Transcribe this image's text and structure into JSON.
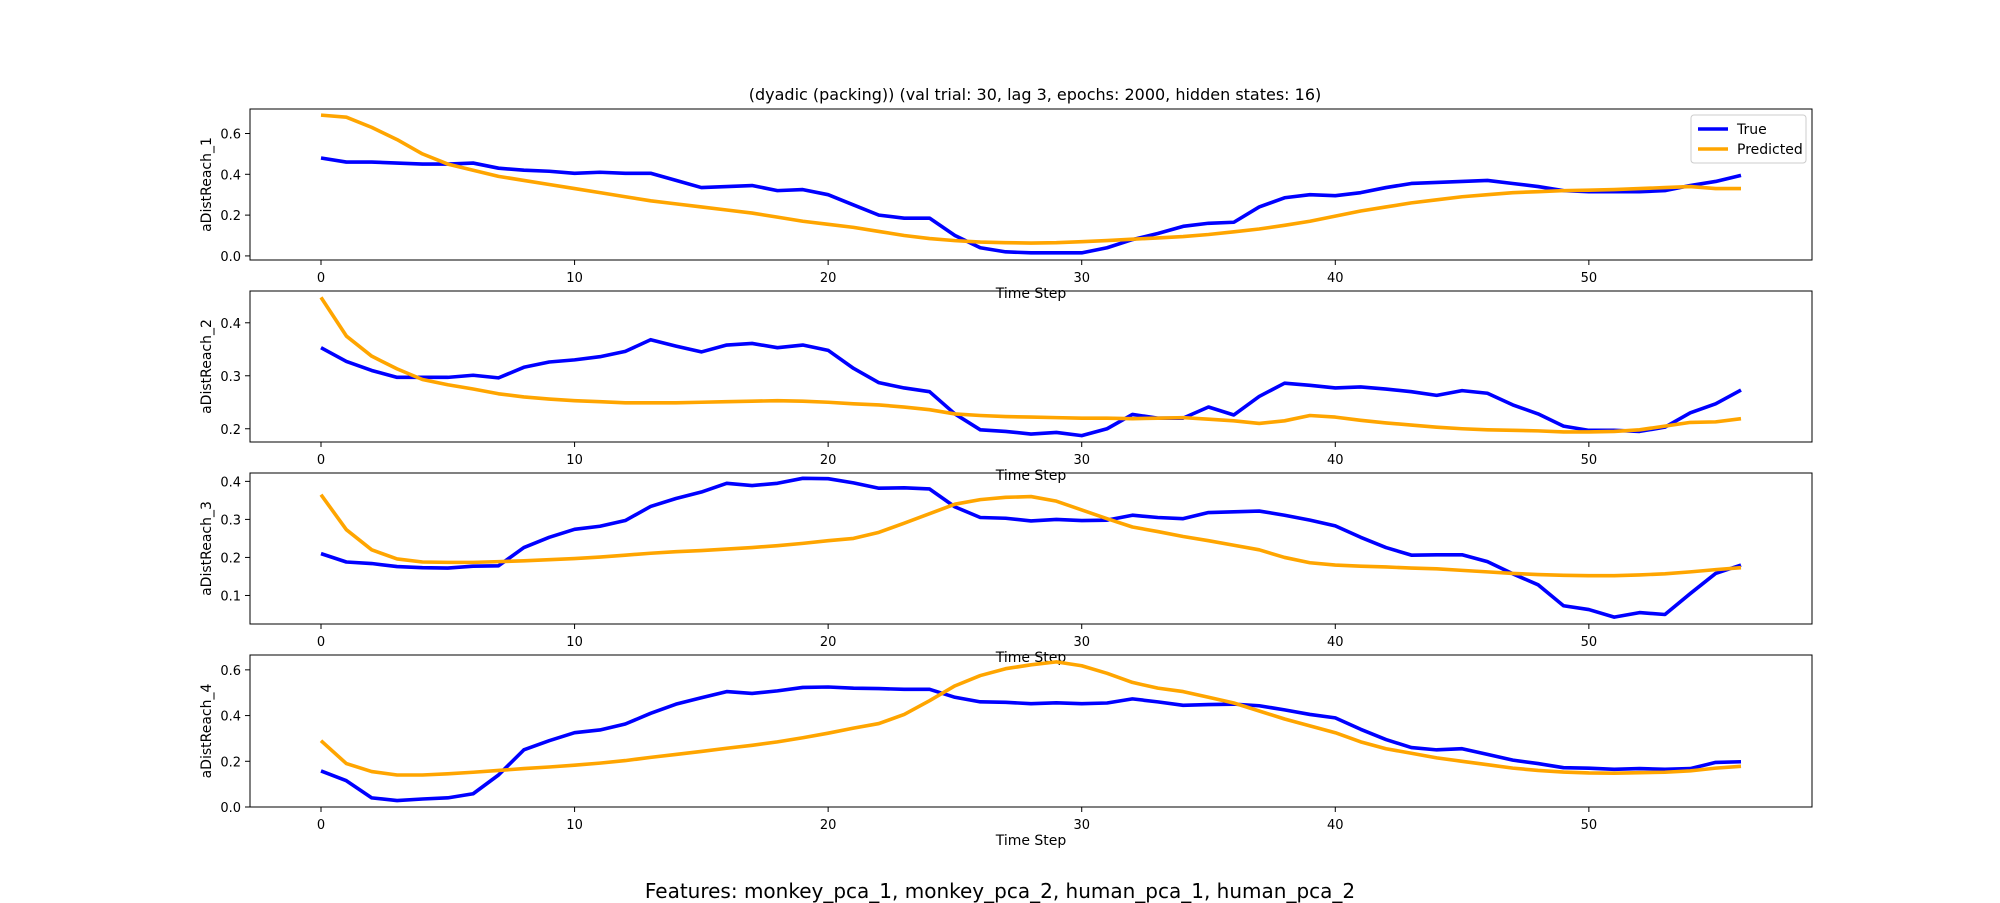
{
  "figure_title": "(dyadic (packing)) (val trial: 30, lag 3, epochs: 2000, hidden states: 16)",
  "caption": "Features: monkey_pca_1, monkey_pca_2, human_pca_1, human_pca_2",
  "colors": {
    "true": "#0000ff",
    "predicted": "#ffa500"
  },
  "chart_data": [
    {
      "type": "line",
      "xlabel": "Time Step",
      "ylabel": "aDistReach_1",
      "xlim": [
        -2.8,
        58.8
      ],
      "ylim": [
        -0.02,
        0.72
      ],
      "xticks": [
        0,
        10,
        20,
        30,
        40,
        50
      ],
      "yticks": [
        0.0,
        0.2,
        0.4,
        0.6
      ],
      "ytick_labels": [
        "0.0",
        "0.2",
        "0.4",
        "0.6"
      ],
      "grid": false,
      "legend": "top-right",
      "series": [
        {
          "name": "True",
          "color": "#0000ff",
          "values": [
            0.48,
            0.46,
            0.46,
            0.455,
            0.45,
            0.45,
            0.455,
            0.43,
            0.42,
            0.415,
            0.405,
            0.41,
            0.405,
            0.405,
            0.37,
            0.335,
            0.34,
            0.345,
            0.32,
            0.325,
            0.3,
            0.25,
            0.2,
            0.185,
            0.185,
            0.1,
            0.04,
            0.02,
            0.015,
            0.015,
            0.015,
            0.04,
            0.08,
            0.11,
            0.145,
            0.16,
            0.165,
            0.24,
            0.285,
            0.3,
            0.295,
            0.31,
            0.335,
            0.355,
            0.36,
            0.365,
            0.37,
            0.355,
            0.34,
            0.32,
            0.315,
            0.315,
            0.315,
            0.32,
            0.345,
            0.365,
            0.395
          ]
        },
        {
          "name": "Predicted",
          "color": "#ffa500",
          "values": [
            0.69,
            0.68,
            0.63,
            0.57,
            0.5,
            0.45,
            0.42,
            0.39,
            0.37,
            0.35,
            0.33,
            0.31,
            0.29,
            0.27,
            0.255,
            0.24,
            0.225,
            0.21,
            0.19,
            0.17,
            0.155,
            0.14,
            0.12,
            0.1,
            0.085,
            0.075,
            0.068,
            0.065,
            0.063,
            0.065,
            0.07,
            0.075,
            0.082,
            0.088,
            0.095,
            0.105,
            0.118,
            0.132,
            0.15,
            0.17,
            0.195,
            0.22,
            0.24,
            0.26,
            0.275,
            0.29,
            0.3,
            0.31,
            0.315,
            0.32,
            0.322,
            0.325,
            0.33,
            0.335,
            0.34,
            0.33,
            0.33
          ]
        }
      ]
    },
    {
      "type": "line",
      "xlabel": "Time Step",
      "ylabel": "aDistReach_2",
      "xlim": [
        -2.8,
        58.8
      ],
      "ylim": [
        0.175,
        0.46
      ],
      "xticks": [
        0,
        10,
        20,
        30,
        40,
        50
      ],
      "yticks": [
        0.2,
        0.3,
        0.4
      ],
      "ytick_labels": [
        "0.2",
        "0.3",
        "0.4"
      ],
      "grid": false,
      "series": [
        {
          "name": "True",
          "color": "#0000ff",
          "values": [
            0.353,
            0.327,
            0.31,
            0.297,
            0.297,
            0.297,
            0.301,
            0.296,
            0.316,
            0.326,
            0.33,
            0.336,
            0.346,
            0.368,
            0.356,
            0.345,
            0.358,
            0.361,
            0.353,
            0.358,
            0.348,
            0.314,
            0.287,
            0.277,
            0.27,
            0.228,
            0.198,
            0.195,
            0.19,
            0.193,
            0.187,
            0.2,
            0.227,
            0.22,
            0.22,
            0.241,
            0.226,
            0.261,
            0.286,
            0.282,
            0.277,
            0.279,
            0.275,
            0.27,
            0.263,
            0.272,
            0.267,
            0.245,
            0.228,
            0.205,
            0.197,
            0.197,
            0.195,
            0.203,
            0.23,
            0.247,
            0.273
          ]
        },
        {
          "name": "Predicted",
          "color": "#ffa500",
          "values": [
            0.448,
            0.375,
            0.337,
            0.313,
            0.293,
            0.283,
            0.275,
            0.266,
            0.26,
            0.256,
            0.253,
            0.251,
            0.249,
            0.249,
            0.249,
            0.25,
            0.251,
            0.252,
            0.253,
            0.252,
            0.25,
            0.247,
            0.245,
            0.241,
            0.236,
            0.228,
            0.225,
            0.223,
            0.222,
            0.221,
            0.22,
            0.22,
            0.219,
            0.22,
            0.221,
            0.218,
            0.215,
            0.21,
            0.215,
            0.225,
            0.222,
            0.216,
            0.211,
            0.207,
            0.203,
            0.2,
            0.198,
            0.197,
            0.196,
            0.194,
            0.194,
            0.195,
            0.198,
            0.205,
            0.212,
            0.213,
            0.219
          ]
        }
      ]
    },
    {
      "type": "line",
      "xlabel": "Time Step",
      "ylabel": "aDistReach_3",
      "xlim": [
        -2.8,
        58.8
      ],
      "ylim": [
        0.025,
        0.422
      ],
      "xticks": [
        0,
        10,
        20,
        30,
        40,
        50
      ],
      "yticks": [
        0.1,
        0.2,
        0.3,
        0.4
      ],
      "ytick_labels": [
        "0.1",
        "0.2",
        "0.3",
        "0.4"
      ],
      "grid": false,
      "series": [
        {
          "name": "True",
          "color": "#0000ff",
          "values": [
            0.21,
            0.188,
            0.184,
            0.176,
            0.173,
            0.172,
            0.177,
            0.178,
            0.226,
            0.253,
            0.274,
            0.282,
            0.297,
            0.334,
            0.355,
            0.372,
            0.395,
            0.389,
            0.395,
            0.408,
            0.407,
            0.396,
            0.382,
            0.383,
            0.38,
            0.333,
            0.305,
            0.303,
            0.296,
            0.3,
            0.297,
            0.298,
            0.311,
            0.305,
            0.302,
            0.318,
            0.32,
            0.322,
            0.311,
            0.298,
            0.283,
            0.253,
            0.226,
            0.206,
            0.207,
            0.207,
            0.189,
            0.157,
            0.128,
            0.073,
            0.063,
            0.043,
            0.055,
            0.05,
            0.105,
            0.158,
            0.18
          ]
        },
        {
          "name": "Predicted",
          "color": "#ffa500",
          "values": [
            0.365,
            0.273,
            0.22,
            0.196,
            0.188,
            0.187,
            0.187,
            0.189,
            0.191,
            0.194,
            0.197,
            0.201,
            0.206,
            0.211,
            0.215,
            0.218,
            0.222,
            0.226,
            0.231,
            0.237,
            0.244,
            0.25,
            0.266,
            0.29,
            0.315,
            0.34,
            0.352,
            0.358,
            0.36,
            0.348,
            0.325,
            0.302,
            0.28,
            0.268,
            0.255,
            0.244,
            0.232,
            0.22,
            0.2,
            0.186,
            0.18,
            0.177,
            0.175,
            0.172,
            0.17,
            0.166,
            0.162,
            0.158,
            0.155,
            0.153,
            0.152,
            0.152,
            0.154,
            0.157,
            0.162,
            0.168,
            0.173
          ]
        }
      ]
    },
    {
      "type": "line",
      "xlabel": "Time Step",
      "ylabel": "aDistReach_4",
      "xlim": [
        -2.8,
        58.8
      ],
      "ylim": [
        0.0,
        0.665
      ],
      "xticks": [
        0,
        10,
        20,
        30,
        40,
        50
      ],
      "yticks": [
        0.0,
        0.2,
        0.4,
        0.6
      ],
      "ytick_labels": [
        "0.0",
        "0.2",
        "0.4",
        "0.6"
      ],
      "grid": false,
      "series": [
        {
          "name": "True",
          "color": "#0000ff",
          "values": [
            0.158,
            0.115,
            0.04,
            0.028,
            0.035,
            0.04,
            0.058,
            0.14,
            0.25,
            0.29,
            0.325,
            0.337,
            0.363,
            0.41,
            0.45,
            0.478,
            0.505,
            0.497,
            0.508,
            0.523,
            0.525,
            0.52,
            0.518,
            0.515,
            0.515,
            0.48,
            0.46,
            0.458,
            0.452,
            0.456,
            0.452,
            0.455,
            0.473,
            0.46,
            0.445,
            0.448,
            0.45,
            0.443,
            0.425,
            0.405,
            0.39,
            0.34,
            0.295,
            0.26,
            0.25,
            0.255,
            0.23,
            0.205,
            0.19,
            0.172,
            0.17,
            0.165,
            0.168,
            0.165,
            0.168,
            0.195,
            0.198
          ]
        },
        {
          "name": "Predicted",
          "color": "#ffa500",
          "values": [
            0.29,
            0.19,
            0.155,
            0.14,
            0.14,
            0.145,
            0.152,
            0.16,
            0.168,
            0.175,
            0.183,
            0.192,
            0.203,
            0.217,
            0.23,
            0.243,
            0.257,
            0.27,
            0.285,
            0.303,
            0.323,
            0.345,
            0.365,
            0.405,
            0.465,
            0.53,
            0.575,
            0.605,
            0.622,
            0.635,
            0.618,
            0.585,
            0.545,
            0.52,
            0.505,
            0.48,
            0.455,
            0.42,
            0.385,
            0.355,
            0.325,
            0.285,
            0.255,
            0.235,
            0.215,
            0.2,
            0.185,
            0.17,
            0.16,
            0.153,
            0.149,
            0.148,
            0.15,
            0.152,
            0.158,
            0.17,
            0.178
          ]
        }
      ]
    }
  ]
}
